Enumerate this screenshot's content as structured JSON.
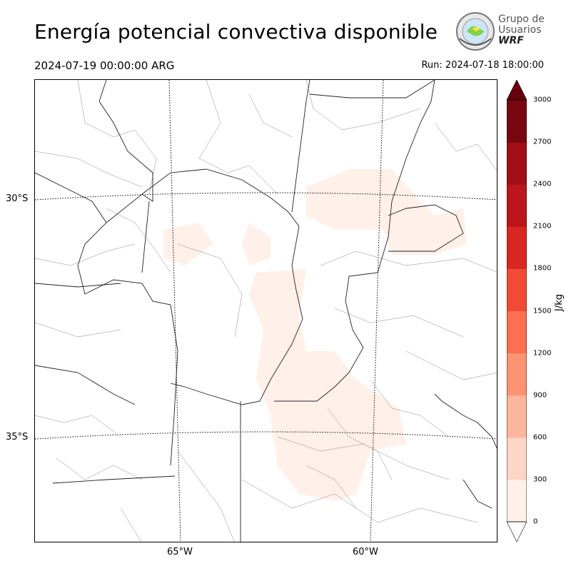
{
  "header": {
    "title": "Energía potencial convectiva disponible",
    "valid_time": "2024-07-19 00:00:00 ARG",
    "run_time": "Run: 2024-07-18 18:00:00"
  },
  "logo": {
    "line1": "Grupo de",
    "line2": "Usuarios",
    "line3": "WRF"
  },
  "map": {
    "lat_labels": [
      "30°S",
      "35°S"
    ],
    "lon_labels": [
      "65°W",
      "60°W"
    ]
  },
  "colorbar": {
    "unit": "J/kg",
    "ticks": [
      "0",
      "300",
      "600",
      "900",
      "1200",
      "1500",
      "1800",
      "2100",
      "2400",
      "2700",
      "3000"
    ],
    "colors": [
      "#fff0e9",
      "#fed6c6",
      "#fcb69b",
      "#fc9474",
      "#fb7050",
      "#f14b37",
      "#d92723",
      "#bb161b",
      "#a00f15",
      "#780711"
    ],
    "over_color": "#67000d",
    "under_color": "#ffffff"
  }
}
